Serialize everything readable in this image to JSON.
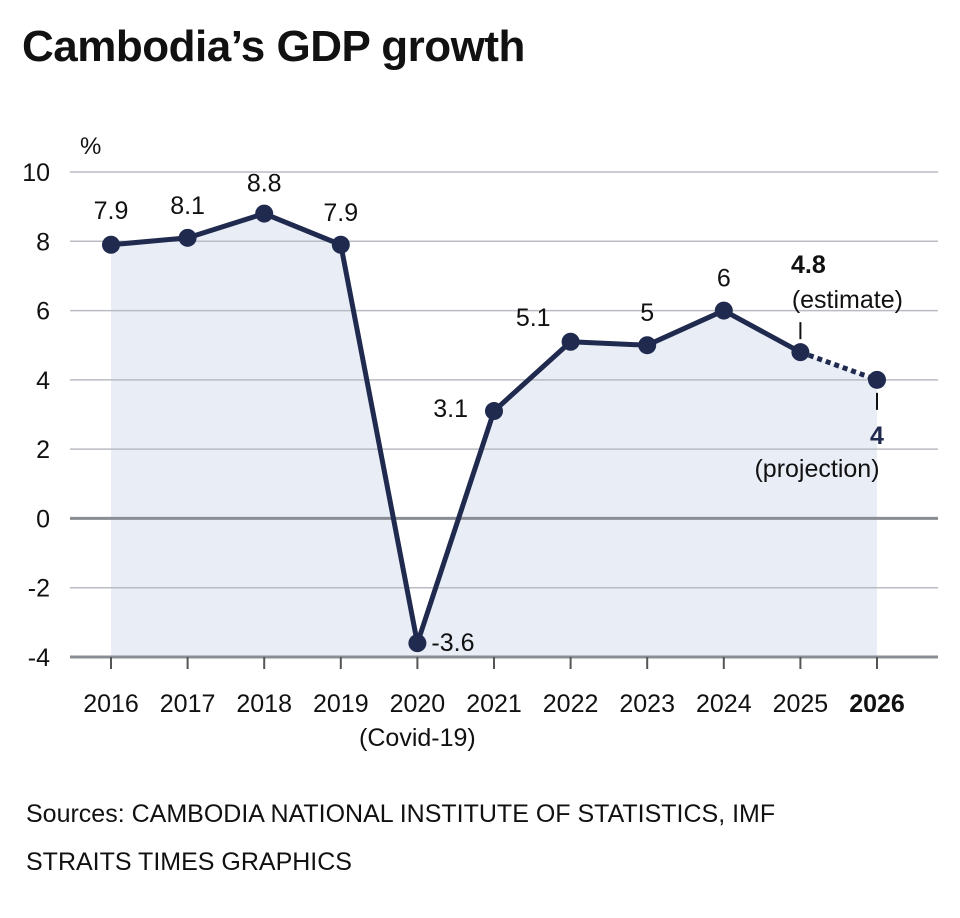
{
  "title": "Cambodia’s GDP growth",
  "sources": "Sources: CAMBODIA NATIONAL INSTITUTE OF STATISTICS, IMF",
  "credit": "STRAITS TIMES GRAPHICS",
  "chart_data": {
    "type": "line",
    "title": "Cambodia’s GDP growth",
    "ylabel": "%",
    "xlabel": "",
    "ylim": [
      -4,
      10
    ],
    "yticks": [
      10,
      8,
      6,
      4,
      2,
      0,
      -2,
      -4
    ],
    "grid": true,
    "area_fill": true,
    "categories": [
      "2016",
      "2017",
      "2018",
      "2019",
      "2020",
      "2021",
      "2022",
      "2023",
      "2024",
      "2025",
      "2026"
    ],
    "category_notes": {
      "2020": "(Covid-19)"
    },
    "bold_categories": [
      "2026"
    ],
    "series": [
      {
        "values": [
          7.9,
          8.1,
          8.8,
          7.9,
          -3.6,
          3.1,
          5.1,
          5,
          6,
          4.8,
          4
        ]
      }
    ],
    "value_labels": [
      "7.9",
      "8.1",
      "8.8",
      "7.9",
      "-3.6",
      "3.1",
      "5.1",
      "5",
      "6",
      "4.8",
      "4"
    ],
    "dashed_segment": [
      "2025",
      "2026"
    ],
    "annotations": [
      {
        "category": "2025",
        "text": "(estimate)"
      },
      {
        "category": "2026",
        "text": "(projection)"
      }
    ],
    "colors": {
      "line": "#1f2a4e",
      "fill": "#e8edf6",
      "grid": "#b9bcc2",
      "zero": "#8a8d93"
    }
  }
}
